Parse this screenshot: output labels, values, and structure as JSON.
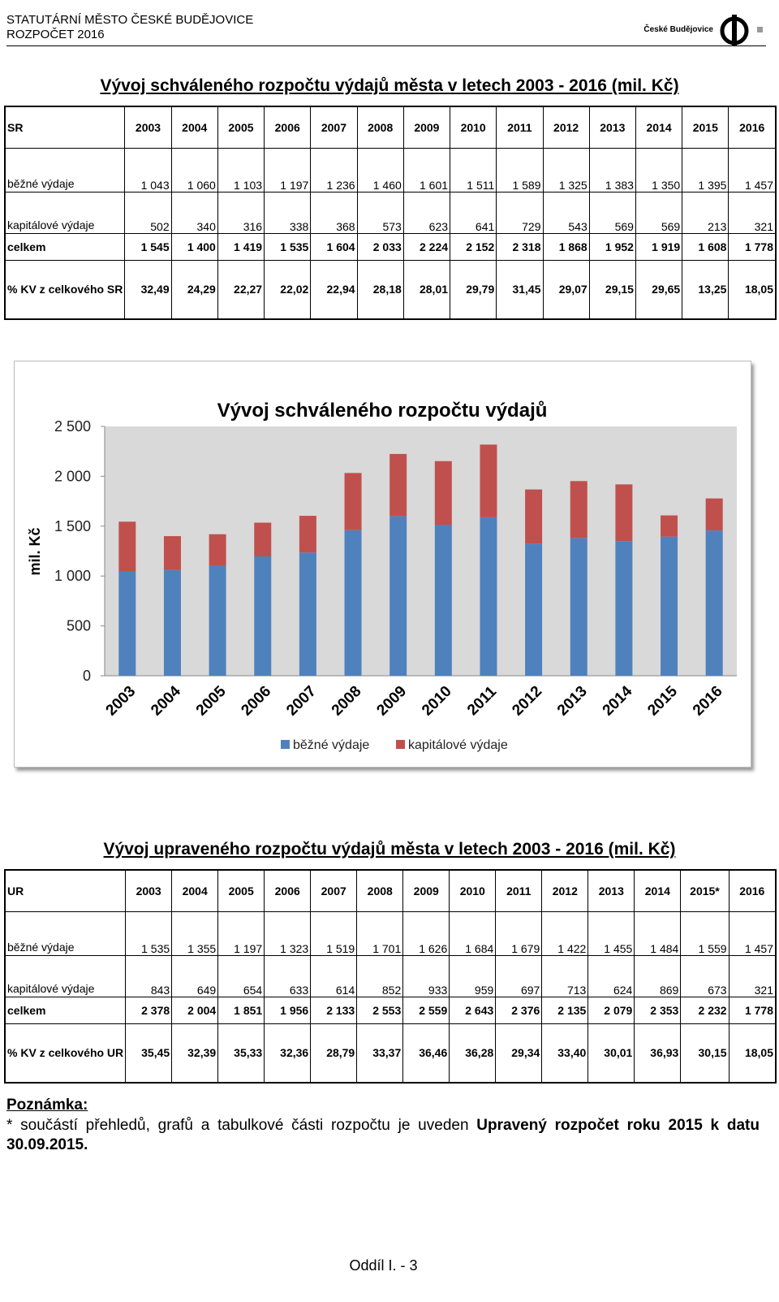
{
  "header": {
    "line1": "STATUTÁRNÍ MĚSTO ČESKÉ BUDĚJOVICE",
    "line2": "ROZPOČET 2016",
    "logo_text": "České Budějovice"
  },
  "table1": {
    "title": "Vývoj schváleného rozpočtu výdajů města v letech 2003 - 2016 (mil. Kč)",
    "corner": "SR",
    "years": [
      "2003",
      "2004",
      "2005",
      "2006",
      "2007",
      "2008",
      "2009",
      "2010",
      "2011",
      "2012",
      "2013",
      "2014",
      "2015",
      "2016"
    ],
    "rows": [
      {
        "label": "běžné výdaje",
        "values": [
          "1 043",
          "1 060",
          "1 103",
          "1 197",
          "1 236",
          "1 460",
          "1 601",
          "1 511",
          "1 589",
          "1 325",
          "1 383",
          "1 350",
          "1 395",
          "1 457"
        ]
      },
      {
        "label": "kapitálové výdaje",
        "values": [
          "502",
          "340",
          "316",
          "338",
          "368",
          "573",
          "623",
          "641",
          "729",
          "543",
          "569",
          "569",
          "213",
          "321"
        ]
      },
      {
        "label": "celkem",
        "values": [
          "1 545",
          "1 400",
          "1 419",
          "1 535",
          "1 604",
          "2 033",
          "2 224",
          "2 152",
          "2 318",
          "1 868",
          "1 952",
          "1 919",
          "1 608",
          "1 778"
        ]
      },
      {
        "label": "% KV z celkového SR",
        "values": [
          "32,49",
          "24,29",
          "22,27",
          "22,02",
          "22,94",
          "28,18",
          "28,01",
          "29,79",
          "31,45",
          "29,07",
          "29,15",
          "29,65",
          "13,25",
          "18,05"
        ]
      }
    ]
  },
  "chart_data": {
    "type": "bar",
    "stacked": true,
    "title": "Vývoj schváleného rozpočtu výdajů",
    "xlabel": "",
    "ylabel": "mil. Kč",
    "categories": [
      "2003",
      "2004",
      "2005",
      "2006",
      "2007",
      "2008",
      "2009",
      "2010",
      "2011",
      "2012",
      "2013",
      "2014",
      "2015",
      "2016"
    ],
    "series": [
      {
        "name": "běžné výdaje",
        "color": "#4f81bd",
        "values": [
          1043,
          1060,
          1103,
          1197,
          1236,
          1460,
          1601,
          1511,
          1589,
          1325,
          1383,
          1350,
          1395,
          1457
        ]
      },
      {
        "name": "kapitálové výdaje",
        "color": "#c0504d",
        "values": [
          502,
          340,
          316,
          338,
          368,
          573,
          623,
          641,
          729,
          543,
          569,
          569,
          213,
          321
        ]
      }
    ],
    "ylim": [
      0,
      2500
    ],
    "yticks": [
      0,
      500,
      1000,
      1500,
      2000,
      2500
    ],
    "ytick_labels": [
      "0",
      "500",
      "1 000",
      "1 500",
      "2 000",
      "2 500"
    ],
    "legend": "bottom",
    "plot_background": "#d9d9d9"
  },
  "table2": {
    "title": "Vývoj upraveného rozpočtu výdajů města v letech 2003 - 2016 (mil. Kč)",
    "corner": "UR",
    "years": [
      "2003",
      "2004",
      "2005",
      "2006",
      "2007",
      "2008",
      "2009",
      "2010",
      "2011",
      "2012",
      "2013",
      "2014",
      "2015*",
      "2016"
    ],
    "rows": [
      {
        "label": "běžné výdaje",
        "values": [
          "1 535",
          "1 355",
          "1 197",
          "1 323",
          "1 519",
          "1 701",
          "1 626",
          "1 684",
          "1 679",
          "1 422",
          "1 455",
          "1 484",
          "1 559",
          "1 457"
        ]
      },
      {
        "label": "kapitálové výdaje",
        "values": [
          "843",
          "649",
          "654",
          "633",
          "614",
          "852",
          "933",
          "959",
          "697",
          "713",
          "624",
          "869",
          "673",
          "321"
        ]
      },
      {
        "label": "celkem",
        "values": [
          "2 378",
          "2 004",
          "1 851",
          "1 956",
          "2 133",
          "2 553",
          "2 559",
          "2 643",
          "2 376",
          "2 135",
          "2 079",
          "2 353",
          "2 232",
          "1 778"
        ]
      },
      {
        "label": "% KV z celkového UR",
        "values": [
          "35,45",
          "32,39",
          "35,33",
          "32,36",
          "28,79",
          "33,37",
          "36,46",
          "36,28",
          "29,34",
          "33,40",
          "30,01",
          "36,93",
          "30,15",
          "18,05"
        ]
      }
    ]
  },
  "note": {
    "heading": "Poznámka:",
    "text_start": "* součástí přehledů, grafů a tabulkové části rozpočtu je uveden ",
    "text_bold": "Upravený rozpočet roku 2015 k datu 30.09.2015."
  },
  "footer": "Oddíl I. - 3"
}
